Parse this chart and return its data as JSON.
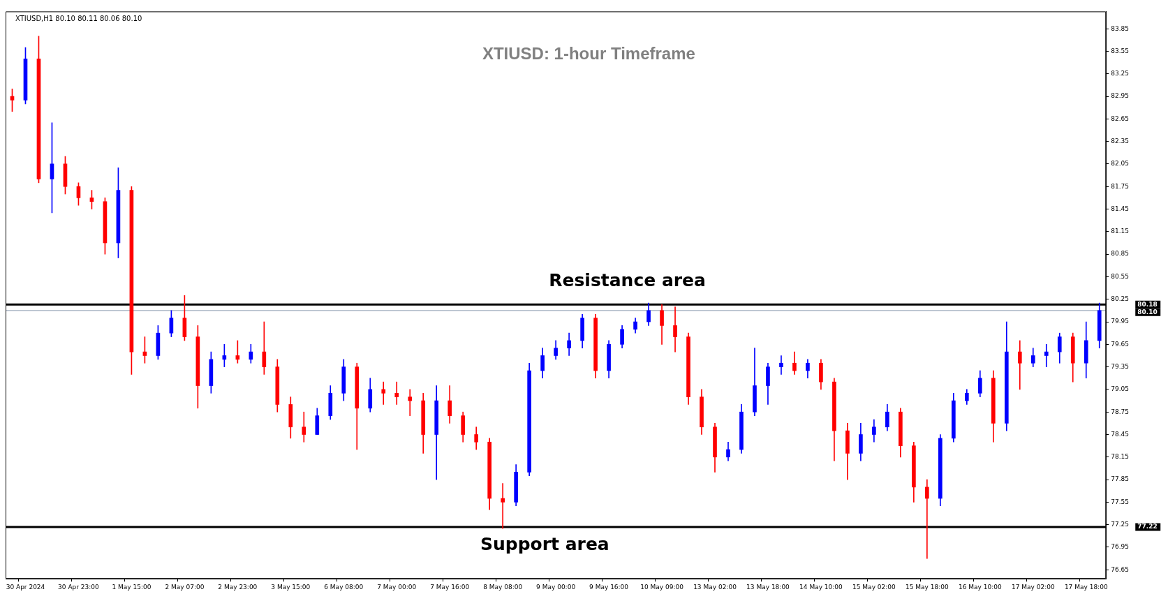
{
  "chart_data": {
    "type": "candlestick",
    "title": "XTIUSD: 1-hour Timeframe",
    "annotations": [
      "XTIUSD,H1 80.10 80.11 80.06 80.10",
      "80.18",
      "80.10",
      "77.22"
    ],
    "categories": [
      null,
      "30 Apr 2024",
      null,
      null,
      null,
      "30 Apr 23:00",
      null,
      null,
      null,
      "1 May 15:00",
      null,
      null,
      null,
      "2 May 07:00",
      null,
      null,
      null,
      "2 May 23:00",
      null,
      null,
      null,
      "3 May 15:00",
      null,
      null,
      null,
      "6 May 08:00",
      null,
      null,
      null,
      "7 May 00:00",
      null,
      null,
      null,
      "7 May 16:00",
      null,
      null,
      null,
      "8 May 08:00",
      null,
      null,
      null,
      "9 May 00:00",
      null,
      null,
      null,
      "9 May 16:00",
      null,
      null,
      null,
      "10 May 09:00",
      null,
      null,
      null,
      "13 May 02:00",
      null,
      null,
      null,
      "13 May 18:00",
      null,
      null,
      null,
      "14 May 10:00",
      null,
      null,
      null,
      "15 May 02:00",
      null,
      null,
      null,
      "15 May 18:00",
      null,
      null,
      null,
      "16 May 10:00",
      null,
      null,
      null,
      "17 May 02:00",
      null,
      null,
      null,
      "17 May 18:00",
      null
    ],
    "ohlc": [
      [
        82.95,
        83.05,
        82.75,
        82.9
      ],
      [
        82.9,
        83.6,
        82.85,
        83.45
      ],
      [
        83.45,
        83.75,
        81.8,
        81.85
      ],
      [
        81.85,
        82.6,
        81.4,
        82.05
      ],
      [
        82.05,
        82.15,
        81.65,
        81.75
      ],
      [
        81.75,
        81.8,
        81.5,
        81.6
      ],
      [
        81.6,
        81.7,
        81.45,
        81.55
      ],
      [
        81.55,
        81.6,
        80.85,
        81.0
      ],
      [
        81.0,
        82.0,
        80.8,
        81.7
      ],
      [
        81.7,
        81.75,
        79.25,
        79.55
      ],
      [
        79.55,
        79.75,
        79.4,
        79.5
      ],
      [
        79.5,
        79.9,
        79.45,
        79.8
      ],
      [
        79.8,
        80.1,
        79.75,
        80.0
      ],
      [
        80.0,
        80.3,
        79.7,
        79.75
      ],
      [
        79.75,
        79.9,
        78.8,
        79.1
      ],
      [
        79.1,
        79.55,
        79.0,
        79.45
      ],
      [
        79.45,
        79.65,
        79.35,
        79.5
      ],
      [
        79.5,
        79.7,
        79.4,
        79.45
      ],
      [
        79.45,
        79.65,
        79.4,
        79.55
      ],
      [
        79.55,
        79.95,
        79.25,
        79.35
      ],
      [
        79.35,
        79.45,
        78.75,
        78.85
      ],
      [
        78.85,
        78.95,
        78.4,
        78.55
      ],
      [
        78.55,
        78.75,
        78.35,
        78.45
      ],
      [
        78.45,
        78.8,
        78.45,
        78.7
      ],
      [
        78.7,
        79.1,
        78.65,
        79.0
      ],
      [
        79.0,
        79.45,
        78.9,
        79.35
      ],
      [
        79.35,
        79.4,
        78.25,
        78.8
      ],
      [
        78.8,
        79.2,
        78.75,
        79.05
      ],
      [
        79.05,
        79.15,
        78.85,
        79.0
      ],
      [
        79.0,
        79.15,
        78.85,
        78.95
      ],
      [
        78.95,
        79.05,
        78.7,
        78.9
      ],
      [
        78.9,
        79.0,
        78.2,
        78.45
      ],
      [
        78.45,
        79.1,
        77.85,
        78.9
      ],
      [
        78.9,
        79.1,
        78.6,
        78.7
      ],
      [
        78.7,
        78.75,
        78.35,
        78.45
      ],
      [
        78.45,
        78.55,
        78.25,
        78.35
      ],
      [
        78.35,
        78.4,
        77.45,
        77.6
      ],
      [
        77.6,
        77.8,
        77.2,
        77.55
      ],
      [
        77.55,
        78.05,
        77.5,
        77.95
      ],
      [
        77.95,
        79.4,
        77.9,
        79.3
      ],
      [
        79.3,
        79.6,
        79.2,
        79.5
      ],
      [
        79.5,
        79.7,
        79.45,
        79.6
      ],
      [
        79.6,
        79.8,
        79.5,
        79.7
      ],
      [
        79.7,
        80.05,
        79.6,
        80.0
      ],
      [
        80.0,
        80.05,
        79.2,
        79.3
      ],
      [
        79.3,
        79.7,
        79.2,
        79.65
      ],
      [
        79.65,
        79.9,
        79.6,
        79.85
      ],
      [
        79.85,
        80.0,
        79.8,
        79.95
      ],
      [
        79.95,
        80.2,
        79.9,
        80.1
      ],
      [
        80.1,
        80.18,
        79.65,
        79.9
      ],
      [
        79.9,
        80.15,
        79.55,
        79.75
      ],
      [
        79.75,
        79.8,
        78.85,
        78.95
      ],
      [
        78.95,
        79.05,
        78.45,
        78.55
      ],
      [
        78.55,
        78.6,
        77.95,
        78.15
      ],
      [
        78.15,
        78.35,
        78.1,
        78.25
      ],
      [
        78.25,
        78.85,
        78.2,
        78.75
      ],
      [
        78.75,
        79.6,
        78.7,
        79.1
      ],
      [
        79.1,
        79.4,
        78.85,
        79.35
      ],
      [
        79.35,
        79.5,
        79.25,
        79.4
      ],
      [
        79.4,
        79.55,
        79.25,
        79.3
      ],
      [
        79.3,
        79.45,
        79.2,
        79.4
      ],
      [
        79.4,
        79.45,
        79.05,
        79.15
      ],
      [
        79.15,
        79.2,
        78.1,
        78.5
      ],
      [
        78.5,
        78.6,
        77.85,
        78.2
      ],
      [
        78.2,
        78.6,
        78.1,
        78.45
      ],
      [
        78.45,
        78.65,
        78.35,
        78.55
      ],
      [
        78.55,
        78.85,
        78.5,
        78.75
      ],
      [
        78.75,
        78.8,
        78.15,
        78.3
      ],
      [
        78.3,
        78.35,
        77.55,
        77.75
      ],
      [
        77.75,
        77.85,
        76.8,
        77.6
      ],
      [
        77.6,
        78.45,
        77.5,
        78.4
      ],
      [
        78.4,
        79.0,
        78.35,
        78.9
      ],
      [
        78.9,
        79.05,
        78.85,
        79.0
      ],
      [
        79.0,
        79.3,
        78.95,
        79.2
      ],
      [
        79.2,
        79.3,
        78.35,
        78.6
      ],
      [
        78.6,
        79.95,
        78.5,
        79.55
      ],
      [
        79.55,
        79.7,
        79.05,
        79.4
      ],
      [
        79.4,
        79.6,
        79.35,
        79.5
      ],
      [
        79.5,
        79.65,
        79.35,
        79.55
      ],
      [
        79.55,
        79.8,
        79.4,
        79.75
      ],
      [
        79.75,
        79.8,
        79.15,
        79.4
      ],
      [
        79.4,
        79.95,
        79.2,
        79.7
      ],
      [
        79.7,
        80.2,
        79.6,
        80.1
      ]
    ],
    "colors": [
      "#ff0000",
      "#0000ff",
      "#ff0000",
      "#0000ff",
      "#ff0000",
      "#ff0000",
      "#ff0000",
      "#ff0000",
      "#0000ff",
      "#ff0000",
      "#ff0000",
      "#0000ff",
      "#0000ff",
      "#ff0000",
      "#ff0000",
      "#0000ff",
      "#0000ff",
      "#ff0000",
      "#0000ff",
      "#ff0000",
      "#ff0000",
      "#ff0000",
      "#ff0000",
      "#0000ff",
      "#0000ff",
      "#0000ff",
      "#ff0000",
      "#0000ff",
      "#ff0000",
      "#ff0000",
      "#ff0000",
      "#ff0000",
      "#0000ff",
      "#ff0000",
      "#ff0000",
      "#ff0000",
      "#ff0000",
      "#ff0000",
      "#0000ff",
      "#0000ff",
      "#0000ff",
      "#0000ff",
      "#0000ff",
      "#0000ff",
      "#ff0000",
      "#0000ff",
      "#0000ff",
      "#0000ff",
      "#0000ff",
      "#ff0000",
      "#ff0000",
      "#ff0000",
      "#ff0000",
      "#ff0000",
      "#0000ff",
      "#0000ff",
      "#0000ff",
      "#0000ff",
      "#0000ff",
      "#ff0000",
      "#0000ff",
      "#ff0000",
      "#ff0000",
      "#ff0000",
      "#0000ff",
      "#0000ff",
      "#0000ff",
      "#ff0000",
      "#ff0000",
      "#ff0000",
      "#0000ff",
      "#0000ff",
      "#0000ff",
      "#0000ff",
      "#ff0000",
      "#0000ff",
      "#ff0000",
      "#0000ff",
      "#0000ff",
      "#0000ff",
      "#ff0000",
      "#0000ff",
      "#0000ff"
    ],
    "ylim": [
      76.53,
      84.08
    ],
    "yticks": [
      76.65,
      76.95,
      77.25,
      77.55,
      77.85,
      78.15,
      78.45,
      78.75,
      79.05,
      79.35,
      79.65,
      79.95,
      80.25,
      80.55,
      80.85,
      81.15,
      81.45,
      81.75,
      82.05,
      82.35,
      82.65,
      82.95,
      83.25,
      83.55,
      83.85
    ],
    "ref_lines": [
      {
        "axis": "y",
        "value": 80.18,
        "label": "Resistance area",
        "color": "#000000"
      },
      {
        "axis": "y",
        "value": 80.1,
        "color": "#8a9aae"
      },
      {
        "axis": "y",
        "value": 77.22,
        "label": "Support area",
        "color": "#000000"
      }
    ]
  }
}
